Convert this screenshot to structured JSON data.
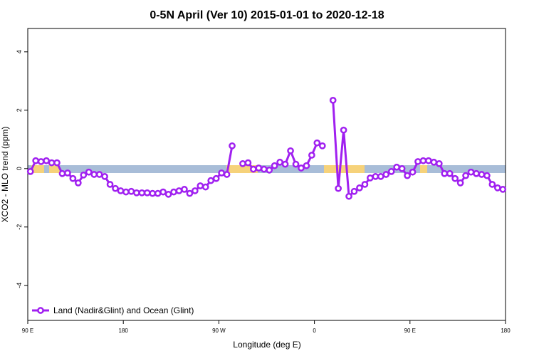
{
  "chart_data": {
    "type": "line",
    "title": "0-5N April (Ver 10)   2015-01-01 to 2020-12-18",
    "x_label": "Longitude (deg E)",
    "y_label": "XCO2 - MLO trend (ppm)",
    "x": [
      92.5,
      97.5,
      102.5,
      107.5,
      112.5,
      117.5,
      122.5,
      127.5,
      132.5,
      137.5,
      142.5,
      147.5,
      152.5,
      157.5,
      162.5,
      167.5,
      172.5,
      177.5,
      182.5,
      187.5,
      192.5,
      197.5,
      202.5,
      207.5,
      212.5,
      217.5,
      222.5,
      227.5,
      232.5,
      237.5,
      242.5,
      247.5,
      252.5,
      257.5,
      262.5,
      267.5,
      272.5,
      277.5,
      282.5,
      287.5,
      292.5,
      297.5,
      302.5,
      307.5,
      312.5,
      317.5,
      322.5,
      327.5,
      332.5,
      337.5,
      342.5,
      347.5,
      352.5,
      357.5,
      362.5,
      367.5,
      372.5,
      377.5,
      382.5,
      387.5,
      392.5,
      397.5,
      402.5,
      407.5,
      412.5,
      417.5,
      422.5,
      427.5,
      432.5,
      437.5,
      442.5,
      447.5,
      452.5,
      457.5,
      462.5,
      467.5,
      472.5,
      477.5,
      482.5,
      487.5,
      492.5,
      497.5,
      502.5,
      507.5,
      512.5,
      517.5,
      522.5,
      527.5,
      532.5,
      537.5
    ],
    "series": [
      {
        "name": "Land (Nadir&Glint) and Ocean (Glint)",
        "color": "#a020f0",
        "values": [
          -0.1,
          0.27,
          0.24,
          0.27,
          0.2,
          0.2,
          -0.17,
          -0.15,
          -0.34,
          -0.49,
          -0.22,
          -0.12,
          -0.2,
          -0.2,
          -0.27,
          -0.54,
          -0.68,
          -0.76,
          -0.8,
          -0.78,
          -0.83,
          -0.83,
          -0.83,
          -0.85,
          -0.85,
          -0.8,
          -0.88,
          -0.8,
          -0.76,
          -0.71,
          -0.85,
          -0.76,
          -0.59,
          -0.63,
          -0.41,
          -0.34,
          -0.15,
          -0.2,
          0.78,
          null,
          0.17,
          0.2,
          -0.02,
          0.02,
          -0.02,
          -0.05,
          0.1,
          0.22,
          0.15,
          0.61,
          0.15,
          0.02,
          0.1,
          0.46,
          0.88,
          0.78,
          null,
          2.34,
          -0.68,
          1.32,
          -0.95,
          -0.78,
          -0.66,
          -0.54,
          -0.32,
          -0.27,
          -0.27,
          -0.2,
          -0.1,
          0.05,
          0,
          -0.24,
          -0.12,
          0.24,
          0.27,
          0.27,
          0.22,
          0.17,
          -0.17,
          -0.17,
          -0.34,
          -0.49,
          -0.24,
          -0.12,
          -0.17,
          -0.2,
          -0.24,
          -0.54,
          -0.66,
          -0.71
        ]
      }
    ],
    "xlim": [
      90,
      540
    ],
    "xticks": [
      {
        "value": 90,
        "label": "90 E"
      },
      180,
      {
        "value": 270,
        "label": "90 W"
      },
      {
        "value": 360,
        "label": "0"
      },
      {
        "value": 450,
        "label": "90 E"
      },
      {
        "value": 540,
        "label": "180"
      }
    ],
    "ylim": [
      -5.2,
      4.8
    ],
    "yticks": [
      -4,
      -2,
      0,
      2,
      4
    ],
    "legend": "bottom-left"
  }
}
